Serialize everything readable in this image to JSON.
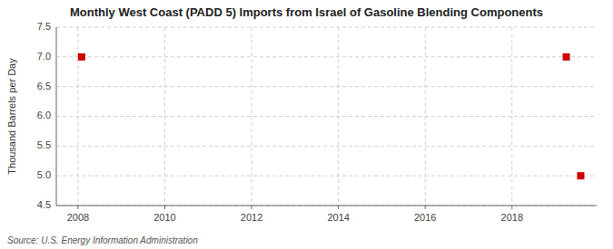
{
  "chart_data": {
    "type": "scatter",
    "title": "Monthly West Coast (PADD 5) Imports from Israel of Gasoline Blending Components",
    "y_label": "Thousand Barrels per Day",
    "annotations": [
      "Source: U.S. Energy Information Administration"
    ],
    "x": [
      2008.083,
      2019.25,
      2019.583
    ],
    "values": [
      7.0,
      7.0,
      5.0
    ],
    "color": "#cc0000",
    "marker": "square",
    "xlim": [
      2007.5,
      2019.95
    ],
    "ylim": [
      4.5,
      7.5
    ],
    "xticks": [
      2008,
      2010,
      2012,
      2014,
      2016,
      2018
    ],
    "yticks": [
      4.5,
      {
        "value": 5.0,
        "label": "5.0"
      },
      5.5,
      {
        "value": 6.0,
        "label": "6.0"
      },
      6.5,
      {
        "value": 7.0,
        "label": "7.0"
      },
      7.5
    ],
    "grid": true
  }
}
